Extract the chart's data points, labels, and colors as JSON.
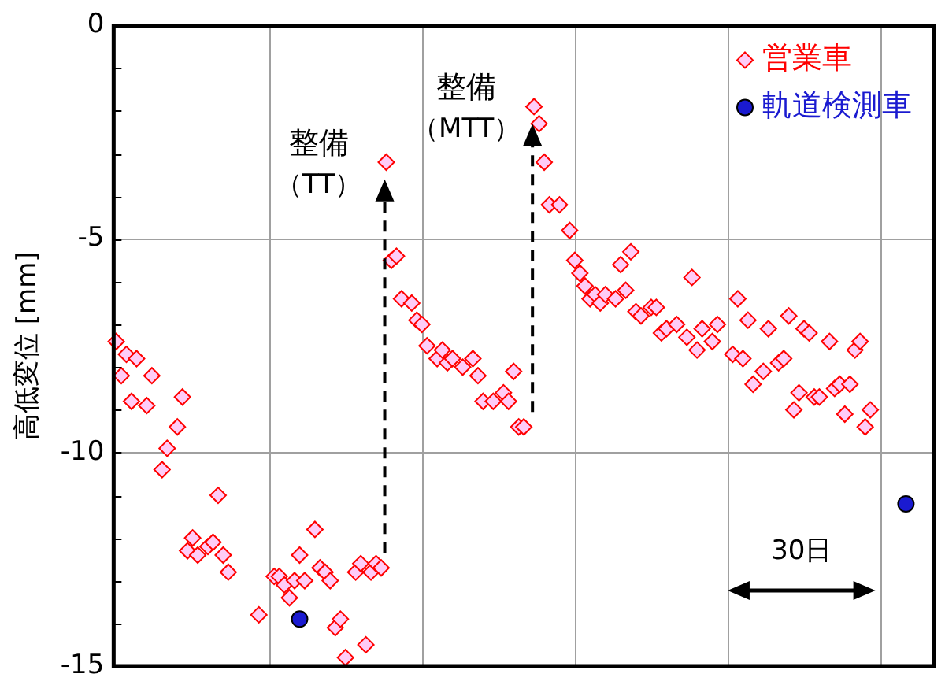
{
  "chart_data": {
    "type": "scatter",
    "ylabel": "高低変位 [mm]",
    "categories": [
      null,
      null,
      null,
      null,
      null,
      null,
      null,
      null,
      null,
      null,
      null,
      null,
      null,
      null,
      null,
      null,
      null,
      null,
      null,
      null,
      null,
      null,
      null,
      null,
      null,
      null,
      null,
      null,
      null,
      null,
      null,
      null,
      null,
      null,
      null,
      null,
      null,
      null,
      null,
      null,
      null,
      null,
      null,
      null,
      null,
      null,
      null,
      null,
      null,
      null,
      null,
      null,
      null,
      null,
      null,
      null,
      null,
      null,
      null,
      null,
      null,
      null,
      null,
      null,
      null,
      null,
      null,
      null,
      null,
      null,
      null,
      null,
      null,
      null,
      null,
      null,
      null,
      null,
      null,
      null,
      null,
      null,
      null,
      null,
      null,
      null,
      null,
      null,
      null,
      null,
      null,
      null,
      null,
      null,
      null,
      null,
      null,
      null,
      null,
      null,
      null,
      null,
      null,
      null,
      null,
      null,
      null,
      null,
      null,
      null,
      null,
      null,
      null,
      null,
      null,
      null,
      null,
      null,
      null,
      null,
      null,
      null,
      null,
      null,
      null,
      null,
      null,
      null,
      null,
      null,
      null,
      null,
      null,
      null,
      null,
      null,
      null,
      null,
      null,
      null,
      null,
      null,
      null,
      null,
      null,
      null,
      null,
      null,
      null,
      null,
      null,
      null,
      null,
      null,
      null,
      null,
      null,
      null,
      null,
      null,
      null
    ],
    "ylim": [
      -15,
      0
    ],
    "yticks": [
      -15,
      {
        "value": -14,
        "label": null
      },
      {
        "value": -13,
        "label": null
      },
      {
        "value": -12,
        "label": null
      },
      {
        "value": -11,
        "label": null
      },
      -10,
      {
        "value": -9,
        "label": null
      },
      {
        "value": -8,
        "label": null
      },
      {
        "value": -7,
        "label": null
      },
      {
        "value": -6,
        "label": null
      },
      -5,
      {
        "value": -4,
        "label": null
      },
      {
        "value": -3,
        "label": null
      },
      {
        "value": -2,
        "label": null
      },
      {
        "value": -1,
        "label": null
      },
      0
    ],
    "tick_labels": "y",
    "grid": true,
    "legend": "top right",
    "series": [
      {
        "name": "営業車",
        "color": "#ff0000",
        "marker": "diamond",
        "values": [
          -7.4,
          -8.2,
          -7.7,
          -8.8,
          -7.8,
          null,
          -8.9,
          -8.2,
          null,
          -10.4,
          -9.9,
          null,
          -9.4,
          -8.7,
          -12.3,
          -12,
          -12.4,
          null,
          -12.2,
          -12.1,
          -11,
          -12.4,
          -12.8,
          null,
          null,
          null,
          null,
          null,
          -13.8,
          null,
          null,
          -12.9,
          -12.9,
          -13.1,
          -13.4,
          -13,
          -12.4,
          -13,
          null,
          -11.8,
          -12.7,
          -12.8,
          -13,
          -14.1,
          -13.9,
          -14.8,
          null,
          -12.8,
          -12.6,
          -14.5,
          -12.8,
          -12.6,
          -12.7,
          -3.2,
          -5.5,
          -5.4,
          -6.4,
          null,
          -6.5,
          -6.9,
          -7,
          -7.5,
          null,
          -7.8,
          -7.6,
          -7.9,
          -7.8,
          null,
          -8,
          null,
          -7.8,
          -8.2,
          -8.8,
          null,
          -8.8,
          null,
          -8.6,
          -8.8,
          -8.1,
          -9.4,
          -9.4,
          null,
          -1.9,
          -2.3,
          -3.2,
          -4.2,
          null,
          -4.2,
          null,
          -4.8,
          -5.5,
          -5.8,
          -6.1,
          -6.4,
          -6.3,
          -6.5,
          -6.3,
          null,
          -6.4,
          -5.6,
          -6.2,
          -5.3,
          -6.7,
          -6.8,
          null,
          -6.6,
          -6.6,
          -7.2,
          -7.1,
          null,
          -7,
          null,
          -7.3,
          -5.9,
          -7.6,
          -7.1,
          null,
          -7.4,
          -7,
          null,
          null,
          -7.7,
          -6.4,
          -7.8,
          -6.9,
          -8.4,
          null,
          -8.1,
          -7.1,
          null,
          -7.9,
          -7.8,
          -6.8,
          -9,
          -8.6,
          -7.1,
          -7.2,
          -8.7,
          -8.7,
          null,
          -7.4,
          -8.5,
          -8.4,
          -9.1,
          -8.4,
          -7.6,
          -7.4,
          -9.4,
          -9,
          null,
          null,
          null,
          null,
          null,
          null,
          null,
          null,
          null,
          null,
          null,
          null
        ]
      },
      {
        "name": "軌道検測車",
        "color": "#1a1ad0",
        "marker": "circle",
        "values": [
          null,
          null,
          null,
          null,
          null,
          null,
          null,
          null,
          null,
          null,
          null,
          null,
          null,
          null,
          null,
          null,
          null,
          null,
          null,
          null,
          null,
          null,
          null,
          null,
          null,
          null,
          null,
          null,
          null,
          null,
          null,
          null,
          null,
          null,
          null,
          null,
          -13.9,
          null,
          null,
          null,
          null,
          null,
          null,
          null,
          null,
          null,
          null,
          null,
          null,
          null,
          null,
          null,
          null,
          null,
          null,
          null,
          null,
          null,
          null,
          null,
          null,
          null,
          null,
          null,
          null,
          null,
          null,
          null,
          null,
          null,
          null,
          null,
          null,
          null,
          null,
          null,
          null,
          null,
          null,
          null,
          null,
          null,
          null,
          null,
          null,
          null,
          null,
          null,
          null,
          null,
          null,
          null,
          null,
          null,
          null,
          null,
          null,
          null,
          null,
          null,
          null,
          null,
          null,
          null,
          null,
          null,
          null,
          null,
          null,
          null,
          null,
          null,
          null,
          null,
          null,
          null,
          null,
          null,
          null,
          null,
          null,
          null,
          null,
          null,
          null,
          null,
          null,
          null,
          null,
          null,
          null,
          null,
          null,
          null,
          null,
          null,
          null,
          null,
          null,
          null,
          null,
          null,
          null,
          null,
          null,
          null,
          null,
          null,
          null,
          null,
          null,
          null,
          null,
          null,
          null,
          -11.2,
          null,
          null,
          null,
          null,
          null
        ]
      }
    ],
    "annotations": [
      "整備（TT）",
      "整備（MTT）",
      "30日"
    ]
  }
}
